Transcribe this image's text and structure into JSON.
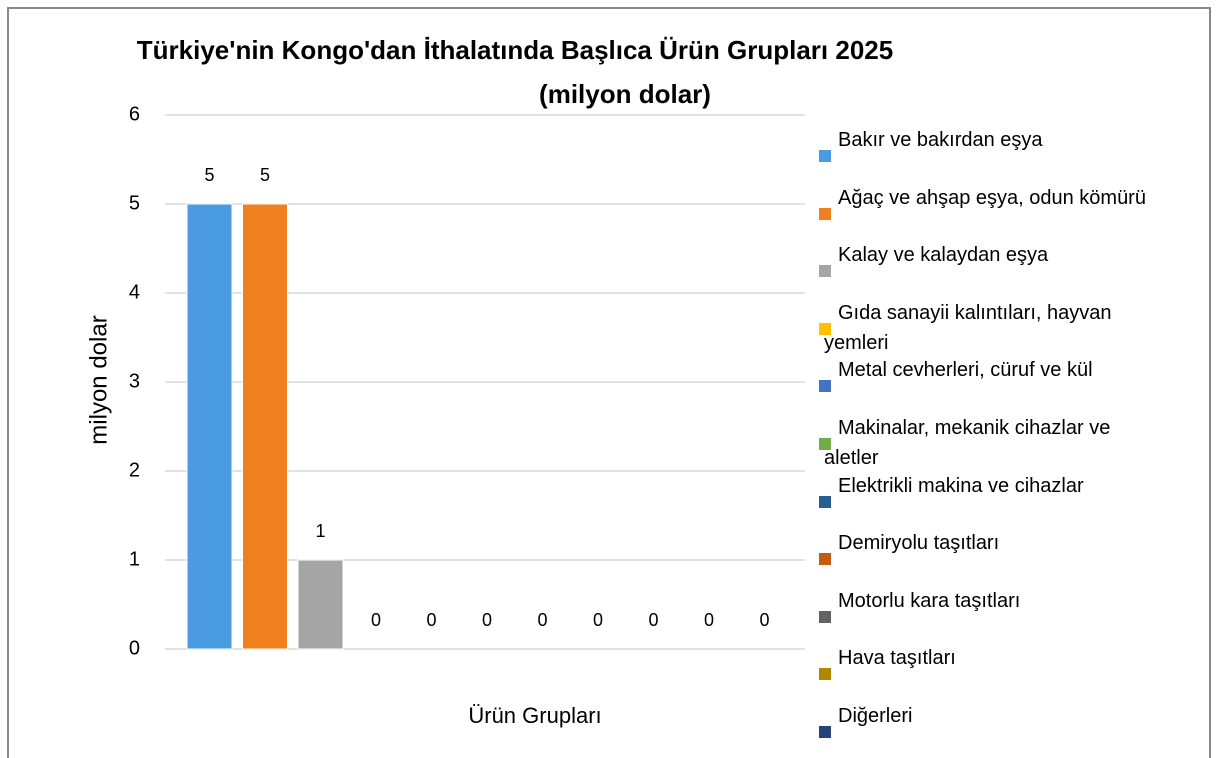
{
  "chart_data": {
    "type": "bar",
    "title": "Türkiye'nin Kongo'dan İthalatında Başlıca Ürün Grupları 2025",
    "subtitle": "(milyon dolar)",
    "x_label": "Ürün Grupları",
    "y_label": "milyon dolar",
    "categories": [
      null
    ],
    "series": [
      {
        "name": "Bakır ve bakırdan eşya",
        "color": "#4a9be0",
        "values": [
          5
        ]
      },
      {
        "name": "Ağaç ve ahşap eşya, odun kömürü",
        "color": "#f07f1e",
        "values": [
          5
        ]
      },
      {
        "name": "Kalay ve kalaydan eşya",
        "color": "#a5a5a5",
        "values": [
          1
        ]
      },
      {
        "name": "Gıda sanayii kalıntıları, hayvan yemleri",
        "color": "#ffc000",
        "values": [
          0
        ]
      },
      {
        "name": "Metal cevherleri, cüruf ve kül",
        "color": "#4472c4",
        "values": [
          0
        ]
      },
      {
        "name": "Makinalar, mekanik cihazlar ve aletler",
        "color": "#70ad47",
        "values": [
          0
        ]
      },
      {
        "name": "Elektrikli makina ve cihazlar",
        "color": "#255e91",
        "values": [
          0
        ]
      },
      {
        "name": "Demiryolu taşıtları",
        "color": "#c55a11",
        "values": [
          0
        ]
      },
      {
        "name": "Motorlu kara taşıtları",
        "color": "#636363",
        "values": [
          0
        ]
      },
      {
        "name": "Hava taşıtları",
        "color": "#b38600",
        "values": [
          0
        ]
      },
      {
        "name": "Diğerleri",
        "color": "#264478",
        "values": [
          0
        ]
      }
    ],
    "ylim": [
      0,
      6
    ],
    "yticks": [
      0,
      1,
      2,
      3,
      4,
      5,
      6
    ],
    "grid": true,
    "legend": "right"
  }
}
